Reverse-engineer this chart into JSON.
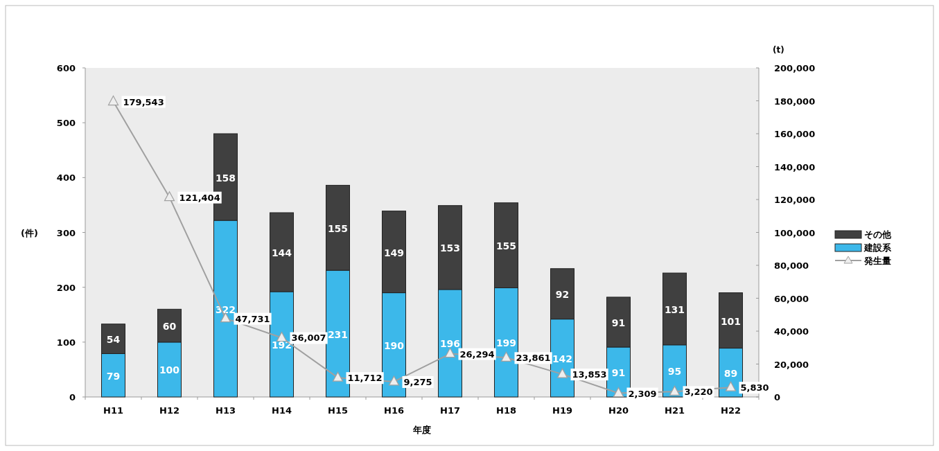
{
  "chart_data": {
    "type": "bar",
    "stacked": true,
    "xlabel": "年度",
    "ylabel": "(件)",
    "y2label": "(t)",
    "categories": [
      "H11",
      "H12",
      "H13",
      "H14",
      "H15",
      "H16",
      "H17",
      "H18",
      "H19",
      "H20",
      "H21",
      "H22"
    ],
    "series": [
      {
        "name": "建設系",
        "color": "#3cb8ea",
        "values": [
          79,
          100,
          322,
          192,
          231,
          190,
          196,
          199,
          142,
          91,
          95,
          89
        ]
      },
      {
        "name": "その他",
        "color": "#404040",
        "values": [
          54,
          60,
          158,
          144,
          155,
          149,
          153,
          155,
          92,
          91,
          131,
          101
        ]
      },
      {
        "name": "発生量",
        "type": "line",
        "axis": "y2",
        "color": "#a0a0a0",
        "marker": "triangle",
        "values": [
          179543,
          121404,
          47731,
          36007,
          11712,
          9275,
          26294,
          23861,
          13853,
          2309,
          3220,
          5830
        ],
        "value_labels": [
          "179,543",
          "121,404",
          "47,731",
          "36,007",
          "11,712",
          "9,275",
          "26,294",
          "23,861",
          "13,853",
          "2,309",
          "3,220",
          "5,830"
        ]
      }
    ],
    "ylim": [
      0,
      600
    ],
    "yticks": [
      0,
      100,
      200,
      300,
      400,
      500,
      600
    ],
    "y2lim": [
      0,
      200000
    ],
    "y2ticks": [
      {
        "value": 0,
        "label": "0"
      },
      {
        "value": 20000,
        "label": "20,000"
      },
      {
        "value": 40000,
        "label": "40,000"
      },
      {
        "value": 60000,
        "label": "60,000"
      },
      {
        "value": 80000,
        "label": "80,000"
      },
      {
        "value": 100000,
        "label": "100,000"
      },
      {
        "value": 120000,
        "label": "120,000"
      },
      {
        "value": 140000,
        "label": "140,000"
      },
      {
        "value": 160000,
        "label": "160,000"
      },
      {
        "value": 180000,
        "label": "180,000"
      },
      {
        "value": 200000,
        "label": "200,000"
      }
    ],
    "data_labels": true,
    "grid": false,
    "legend": "right"
  }
}
